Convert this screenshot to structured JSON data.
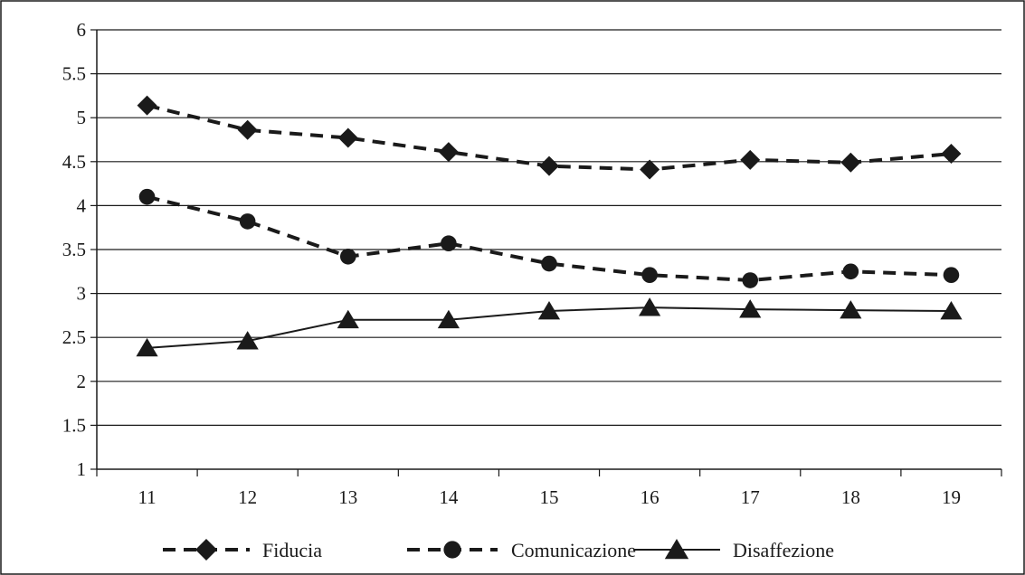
{
  "chart_data": {
    "type": "line",
    "title": "",
    "xlabel": "",
    "ylabel": "",
    "categories": [
      "11",
      "12",
      "13",
      "14",
      "15",
      "16",
      "17",
      "18",
      "19"
    ],
    "ylim": [
      1,
      6
    ],
    "yticks": [
      "1",
      "1.5",
      "2",
      "2.5",
      "3",
      "3.5",
      "4",
      "4.5",
      "5",
      "5.5",
      "6"
    ],
    "grid": "horizontal",
    "legend_position": "bottom",
    "series": [
      {
        "name": "Fiducia",
        "marker": "diamond",
        "line": "dashed",
        "color": "#1a1a1a",
        "values": [
          5.14,
          4.86,
          4.77,
          4.61,
          4.45,
          4.41,
          4.52,
          4.49,
          4.59
        ]
      },
      {
        "name": "Comunicazione",
        "marker": "circle",
        "line": "dashed",
        "color": "#1a1a1a",
        "values": [
          4.1,
          3.82,
          3.42,
          3.57,
          3.34,
          3.21,
          3.15,
          3.25,
          3.21
        ]
      },
      {
        "name": "Disaffezione",
        "marker": "triangle",
        "line": "solid",
        "color": "#1a1a1a",
        "values": [
          2.38,
          2.46,
          2.7,
          2.7,
          2.8,
          2.84,
          2.82,
          2.81,
          2.8
        ]
      }
    ]
  }
}
